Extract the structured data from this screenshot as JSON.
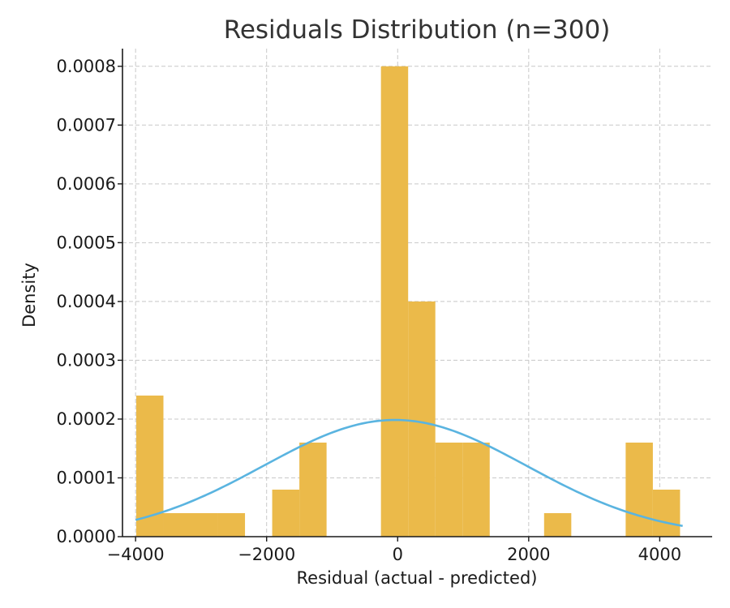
{
  "chart_data": {
    "type": "bar",
    "title": "Residuals Distribution (n=300)",
    "xlabel": "Residual (actual - predicted)",
    "ylabel": "Density",
    "xlim": [
      -4200,
      4800
    ],
    "ylim": [
      0,
      0.00083
    ],
    "grid": true,
    "x_ticks": [
      -4000,
      -2000,
      0,
      2000,
      4000
    ],
    "x_tick_labels": [
      "−4000",
      "−2000",
      "0",
      "2000",
      "4000"
    ],
    "y_ticks": [
      0,
      0.0001,
      0.0002,
      0.0003,
      0.0004,
      0.0005,
      0.0006,
      0.0007,
      0.0008
    ],
    "y_tick_labels": [
      "0.0000",
      "0.0001",
      "0.0002",
      "0.0003",
      "0.0004",
      "0.0005",
      "0.0006",
      "0.0007",
      "0.0008"
    ],
    "bar_color": "#EBBA4A",
    "curve_color": "#5AB4E0",
    "bins": [
      {
        "x0": -3990,
        "x1": -3575,
        "density": 0.00024
      },
      {
        "x0": -3575,
        "x1": -3160,
        "density": 4e-05
      },
      {
        "x0": -3160,
        "x1": -2745,
        "density": 4e-05
      },
      {
        "x0": -2745,
        "x1": -2330,
        "density": 4e-05
      },
      {
        "x0": -1915,
        "x1": -1500,
        "density": 8e-05
      },
      {
        "x0": -1500,
        "x1": -1085,
        "density": 0.00016
      },
      {
        "x0": -255,
        "x1": 160,
        "density": 0.0008
      },
      {
        "x0": 160,
        "x1": 575,
        "density": 0.0004
      },
      {
        "x0": 575,
        "x1": 990,
        "density": 0.00016
      },
      {
        "x0": 990,
        "x1": 1405,
        "density": 0.00016
      },
      {
        "x0": 2235,
        "x1": 2650,
        "density": 4e-05
      },
      {
        "x0": 3480,
        "x1": 3895,
        "density": 0.00016
      },
      {
        "x0": 3895,
        "x1": 4310,
        "density": 8e-05
      }
    ],
    "normal_curve": {
      "mean": -40,
      "sd": 2010,
      "x_range": [
        -4000,
        4350
      ]
    }
  }
}
